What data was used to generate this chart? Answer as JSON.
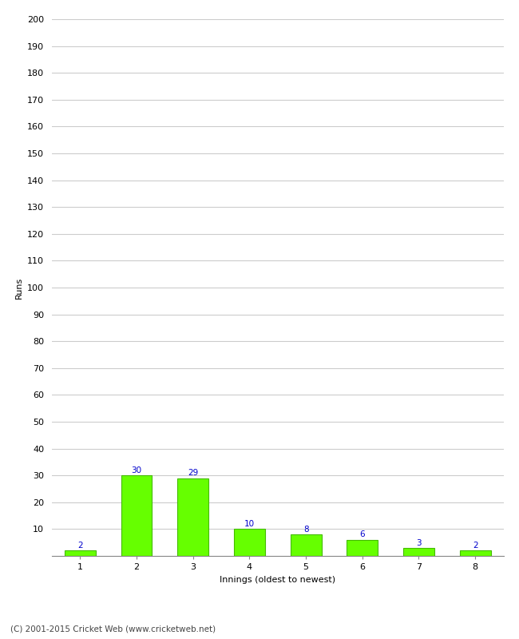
{
  "categories": [
    1,
    2,
    3,
    4,
    5,
    6,
    7,
    8
  ],
  "values": [
    2,
    30,
    29,
    10,
    8,
    6,
    3,
    2
  ],
  "bar_color": "#66ff00",
  "bar_edge_color": "#44bb00",
  "xlabel": "Innings (oldest to newest)",
  "ylabel": "Runs",
  "ylim": [
    0,
    200
  ],
  "yticks": [
    0,
    10,
    20,
    30,
    40,
    50,
    60,
    70,
    80,
    90,
    100,
    110,
    120,
    130,
    140,
    150,
    160,
    170,
    180,
    190,
    200
  ],
  "label_color": "#0000cc",
  "label_fontsize": 7.5,
  "axis_fontsize": 8,
  "tick_fontsize": 8,
  "footer_text": "(C) 2001-2015 Cricket Web (www.cricketweb.net)",
  "background_color": "#ffffff",
  "grid_color": "#cccccc",
  "bar_width": 0.55
}
